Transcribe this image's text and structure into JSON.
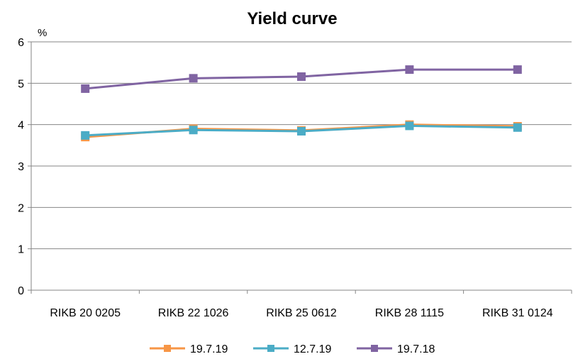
{
  "chart_data": {
    "type": "line",
    "title": "Yield curve",
    "ylabel": "%",
    "xlabel": "",
    "ylim": [
      0,
      6
    ],
    "yticks": [
      0,
      1,
      2,
      3,
      4,
      5,
      6
    ],
    "grid": "horizontal",
    "legend_position": "bottom",
    "categories": [
      "RIKB 20 0205",
      "RIKB 22 1026",
      "RIKB 25 0612",
      "RIKB 28 1115",
      "RIKB 31 0124"
    ],
    "series": [
      {
        "name": "19.7.19",
        "color": "#f79646",
        "values": [
          3.7,
          3.9,
          3.86,
          4.0,
          3.96
        ]
      },
      {
        "name": "12.7.19",
        "color": "#4bacc6",
        "values": [
          3.74,
          3.87,
          3.84,
          3.97,
          3.93
        ]
      },
      {
        "name": "19.7.18",
        "color": "#8064a2",
        "values": [
          4.87,
          5.12,
          5.16,
          5.33,
          5.33
        ]
      }
    ]
  }
}
